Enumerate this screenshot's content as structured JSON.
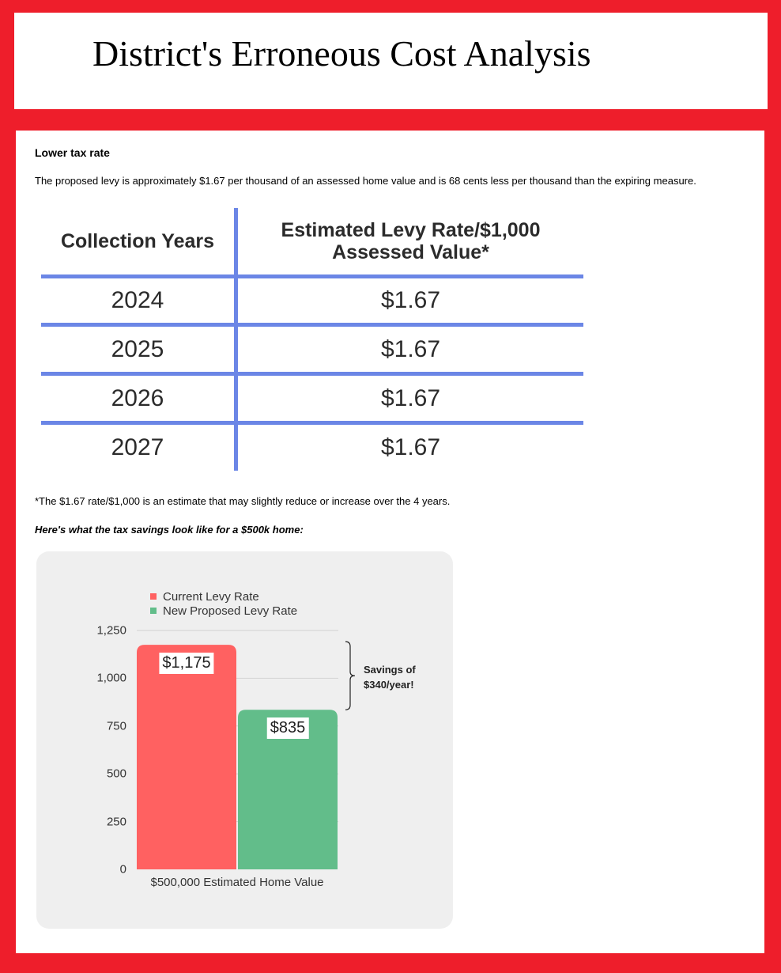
{
  "page": {
    "title": "District's Erroneous Cost Analysis"
  },
  "content": {
    "heading": "Lower tax rate",
    "paragraph": "The proposed levy is approximately $1.67 per thousand of an assessed home value and is 68 cents less per thousand than the expiring measure.",
    "footnote": "*The $1.67 rate/$1,000 is an estimate that may slightly reduce or increase over the 4 years.",
    "chart_lead": "Here's what the tax savings look like for a $500k home:"
  },
  "rate_table": {
    "headers": [
      "Collection Years",
      "Estimated Levy Rate/$1,000 Assessed Value*"
    ],
    "rows": [
      [
        "2024",
        "$1.67"
      ],
      [
        "2025",
        "$1.67"
      ],
      [
        "2026",
        "$1.67"
      ],
      [
        "2027",
        "$1.67"
      ]
    ],
    "line_color": "#6b86e6"
  },
  "chart_data": {
    "type": "bar",
    "categories": [
      "$500,000 Estimated Home Value"
    ],
    "series": [
      {
        "name": "Current Levy Rate",
        "values": [
          1175
        ],
        "color": "#ff6161",
        "label": "$1,175"
      },
      {
        "name": "New Proposed Levy Rate",
        "values": [
          835
        ],
        "color": "#62bd8a",
        "label": "$835"
      }
    ],
    "yticks": [
      "0",
      "250",
      "500",
      "750",
      "1,000",
      "1,250"
    ],
    "ylim": [
      0,
      1250
    ],
    "grid": true,
    "legend": "top-left",
    "annotation": "Savings of $340/year!",
    "annotation_lines": [
      "Savings of",
      "$340/year!"
    ]
  }
}
